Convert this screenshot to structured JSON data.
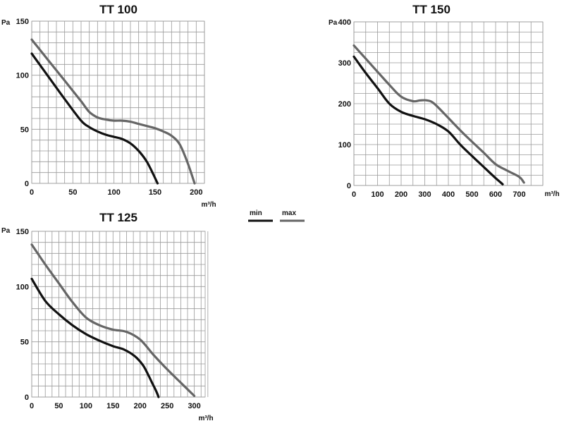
{
  "legend": {
    "min_label": "min",
    "max_label": "max",
    "min_color": "#111111",
    "max_color": "#666666"
  },
  "chart_data": [
    {
      "type": "line",
      "title": "TT 100",
      "ylabel": "Pa",
      "xlabel": "m³/h",
      "xlim": [
        0,
        210
      ],
      "ylim": [
        0,
        150
      ],
      "x_grid_step": 10,
      "y_grid_step": 10,
      "x_ticks": [
        0,
        50,
        100,
        150,
        200
      ],
      "y_ticks": [
        0,
        50,
        100,
        150
      ],
      "grid": true,
      "series": [
        {
          "name": "min",
          "color": "#111111",
          "x": [
            0,
            20,
            40,
            60,
            70,
            80,
            90,
            100,
            110,
            120,
            130,
            140,
            148,
            153
          ],
          "y": [
            120,
            99,
            78,
            58,
            52,
            48,
            45,
            43,
            41,
            37,
            30,
            20,
            8,
            0
          ]
        },
        {
          "name": "max",
          "color": "#666666",
          "x": [
            0,
            20,
            40,
            60,
            70,
            80,
            90,
            100,
            110,
            120,
            130,
            140,
            150,
            160,
            170,
            180,
            190,
            198
          ],
          "y": [
            133,
            114,
            95,
            76,
            66,
            61,
            59,
            58,
            58,
            57,
            55,
            53,
            51,
            48,
            44,
            36,
            18,
            0
          ]
        }
      ]
    },
    {
      "type": "line",
      "title": "TT 150",
      "ylabel": "Pa",
      "xlabel": "m³/h",
      "xlim": [
        0,
        800
      ],
      "ylim": [
        0,
        400
      ],
      "x_grid_step": 50,
      "y_grid_step": 25,
      "x_ticks": [
        0,
        100,
        200,
        300,
        400,
        500,
        600,
        700
      ],
      "y_ticks": [
        0,
        100,
        200,
        300,
        400
      ],
      "grid": true,
      "series": [
        {
          "name": "min",
          "color": "#111111",
          "x": [
            0,
            50,
            100,
            150,
            200,
            250,
            300,
            350,
            400,
            450,
            500,
            550,
            600,
            630
          ],
          "y": [
            315,
            275,
            238,
            200,
            180,
            170,
            162,
            150,
            132,
            100,
            72,
            45,
            18,
            3
          ]
        },
        {
          "name": "max",
          "color": "#666666",
          "x": [
            0,
            50,
            100,
            150,
            200,
            250,
            280,
            310,
            340,
            400,
            450,
            500,
            550,
            600,
            650,
            700,
            720
          ],
          "y": [
            342,
            310,
            278,
            246,
            217,
            206,
            208,
            208,
            200,
            165,
            135,
            107,
            80,
            52,
            36,
            21,
            7
          ]
        }
      ]
    },
    {
      "type": "line",
      "title": "TT 125",
      "ylabel": "Pa",
      "xlabel": "m³/h",
      "xlim": [
        0,
        320
      ],
      "ylim": [
        0,
        150
      ],
      "x_grid_step": 12.5,
      "y_grid_step": 10,
      "x_ticks": [
        0,
        50,
        100,
        150,
        200,
        250,
        300
      ],
      "y_ticks": [
        0,
        50,
        100,
        150
      ],
      "grid": true,
      "series": [
        {
          "name": "min",
          "color": "#111111",
          "x": [
            0,
            25,
            50,
            75,
            100,
            125,
            150,
            170,
            190,
            205,
            215,
            223,
            230,
            234
          ],
          "y": [
            107,
            87,
            75,
            65,
            57,
            51,
            46,
            43,
            37,
            29,
            20,
            12,
            5,
            0
          ]
        },
        {
          "name": "max",
          "color": "#666666",
          "x": [
            0,
            25,
            50,
            75,
            100,
            125,
            150,
            175,
            200,
            225,
            250,
            275,
            300
          ],
          "y": [
            138,
            120,
            103,
            86,
            72,
            65,
            61,
            59,
            52,
            38,
            25,
            13,
            1
          ]
        }
      ]
    }
  ]
}
